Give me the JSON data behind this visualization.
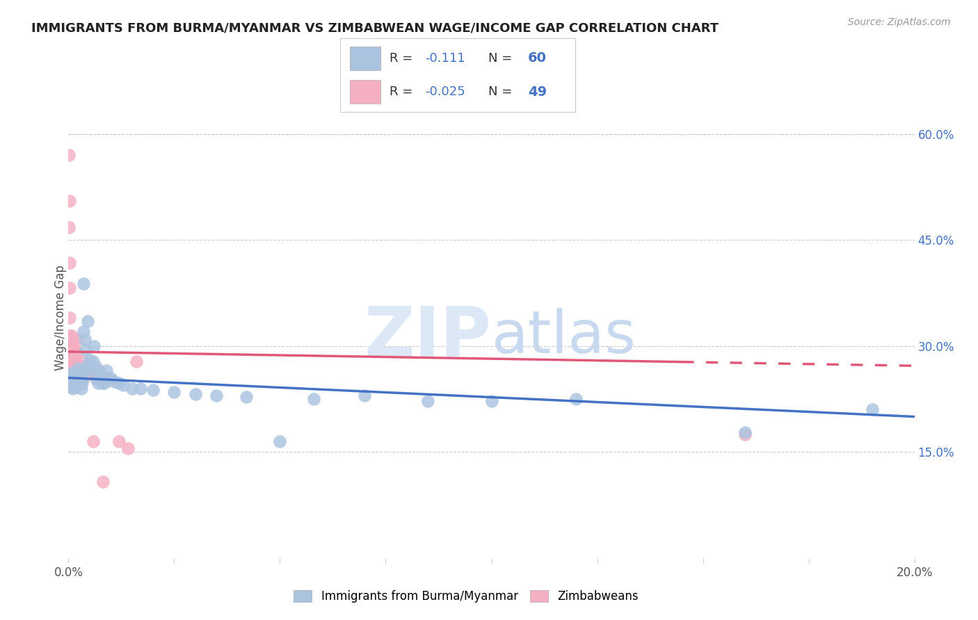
{
  "title": "IMMIGRANTS FROM BURMA/MYANMAR VS ZIMBABWEAN WAGE/INCOME GAP CORRELATION CHART",
  "source": "Source: ZipAtlas.com",
  "ylabel": "Wage/Income Gap",
  "right_ytick_vals": [
    0.15,
    0.3,
    0.45,
    0.6
  ],
  "right_ytick_labels": [
    "15.0%",
    "30.0%",
    "45.0%",
    "60.0%"
  ],
  "blue_R": -0.111,
  "blue_N": 60,
  "pink_R": -0.025,
  "pink_N": 49,
  "blue_color": "#aac4e0",
  "blue_line_color": "#4472c4",
  "pink_color": "#f4afc3",
  "pink_line_color": "#e05878",
  "watermark_line1": "ZIP",
  "watermark_line2": "atlas",
  "watermark_color": "#dce8f5",
  "figsize": [
    14.06,
    8.92
  ],
  "dpi": 100,
  "background_color": "#ffffff",
  "grid_color": "#cccccc",
  "legend_label_blue": "Immigrants from Burma/Myanmar",
  "legend_label_pink": "Zimbabweans",
  "blue_x": [
    0.0003,
    0.0005,
    0.0008,
    0.001,
    0.001,
    0.0012,
    0.0013,
    0.0015,
    0.0015,
    0.0017,
    0.0018,
    0.002,
    0.002,
    0.0022,
    0.0023,
    0.0025,
    0.0025,
    0.0027,
    0.0028,
    0.003,
    0.003,
    0.0032,
    0.0033,
    0.0035,
    0.0035,
    0.0038,
    0.004,
    0.0042,
    0.0045,
    0.0048,
    0.005,
    0.0055,
    0.0058,
    0.006,
    0.0065,
    0.0065,
    0.007,
    0.0075,
    0.008,
    0.0085,
    0.009,
    0.01,
    0.011,
    0.012,
    0.013,
    0.015,
    0.017,
    0.02,
    0.025,
    0.03,
    0.035,
    0.042,
    0.05,
    0.058,
    0.07,
    0.085,
    0.1,
    0.12,
    0.16,
    0.19
  ],
  "blue_y": [
    0.255,
    0.25,
    0.248,
    0.262,
    0.24,
    0.258,
    0.245,
    0.255,
    0.262,
    0.248,
    0.242,
    0.26,
    0.25,
    0.268,
    0.245,
    0.25,
    0.255,
    0.248,
    0.26,
    0.255,
    0.24,
    0.248,
    0.252,
    0.388,
    0.32,
    0.31,
    0.295,
    0.27,
    0.335,
    0.275,
    0.28,
    0.265,
    0.278,
    0.3,
    0.27,
    0.255,
    0.248,
    0.262,
    0.248,
    0.248,
    0.265,
    0.255,
    0.25,
    0.248,
    0.245,
    0.24,
    0.24,
    0.238,
    0.235,
    0.232,
    0.23,
    0.228,
    0.165,
    0.225,
    0.23,
    0.222,
    0.222,
    0.225,
    0.178,
    0.21
  ],
  "pink_x": [
    5e-05,
    8e-05,
    0.0001,
    0.00012,
    0.00015,
    0.00018,
    0.0002,
    0.00022,
    0.00025,
    0.00028,
    0.00032,
    0.00035,
    0.00038,
    0.0004,
    0.00042,
    0.00045,
    0.0005,
    0.00055,
    0.00058,
    0.00062,
    0.00068,
    0.00075,
    0.00082,
    0.0009,
    0.001,
    0.0011,
    0.00125,
    0.0014,
    0.0016,
    0.0018,
    0.002,
    0.00225,
    0.0025,
    0.0028,
    0.0032,
    0.0036,
    0.004,
    0.0045,
    0.005,
    0.0058,
    0.0065,
    0.0072,
    0.0082,
    0.0092,
    0.01,
    0.012,
    0.014,
    0.016,
    0.16
  ],
  "pink_y": [
    0.57,
    0.468,
    0.28,
    0.262,
    0.252,
    0.505,
    0.418,
    0.382,
    0.34,
    0.315,
    0.305,
    0.262,
    0.25,
    0.248,
    0.268,
    0.26,
    0.245,
    0.242,
    0.302,
    0.26,
    0.28,
    0.295,
    0.315,
    0.295,
    0.31,
    0.285,
    0.278,
    0.295,
    0.278,
    0.26,
    0.29,
    0.31,
    0.272,
    0.252,
    0.278,
    0.265,
    0.258,
    0.272,
    0.262,
    0.165,
    0.255,
    0.265,
    0.108,
    0.255,
    0.252,
    0.165,
    0.155,
    0.278,
    0.175
  ]
}
